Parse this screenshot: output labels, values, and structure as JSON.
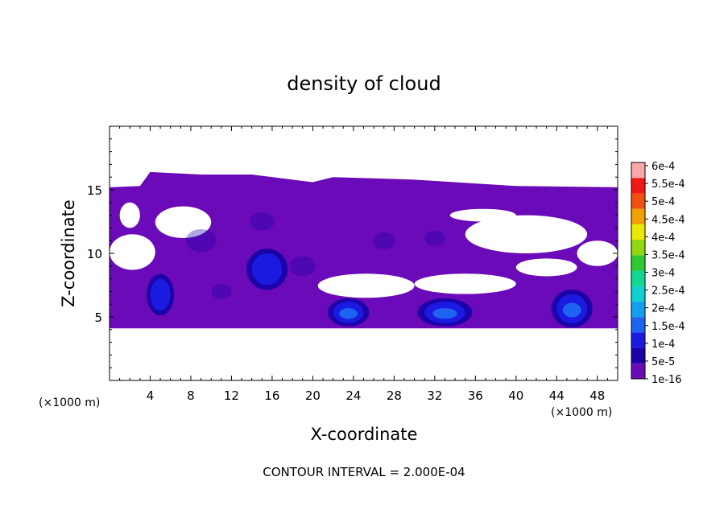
{
  "chart_data": {
    "type": "heatmap",
    "title": "density of cloud",
    "xlabel": "X-coordinate",
    "ylabel": "Z-coordinate",
    "x_units": "(×1000 m)",
    "xlim": [
      0,
      50
    ],
    "ylim": [
      0,
      20
    ],
    "x_ticks": [
      4,
      8,
      12,
      16,
      20,
      24,
      28,
      32,
      36,
      40,
      44,
      48
    ],
    "y_ticks": [
      5,
      10,
      15
    ],
    "colorbar": {
      "labels": [
        "1e-16",
        "5e-5",
        "1e-4",
        "1.5e-4",
        "2e-4",
        "2.5e-4",
        "3e-4",
        "3.5e-4",
        "4e-4",
        "4.5e-4",
        "5e-4",
        "5.5e-4",
        "6e-4"
      ],
      "colors": [
        "#6a0ab8",
        "#1c00a8",
        "#1a1ae0",
        "#1e64f0",
        "#14a0f0",
        "#10d0d0",
        "#10d890",
        "#30c830",
        "#90d810",
        "#e8e800",
        "#f0a000",
        "#f05010",
        "#f01818",
        "#f8a8a8"
      ]
    },
    "footer": "CONTOUR INTERVAL = 2.000E-04",
    "regions": [
      {
        "kind": "cloud_layer",
        "x": [
          0,
          50
        ],
        "z": [
          4,
          16.5
        ],
        "level": "1e-16"
      },
      {
        "kind": "core",
        "x": [
          4,
          6
        ],
        "z": [
          5.5,
          8
        ],
        "level": "1e-4"
      },
      {
        "kind": "core",
        "x": [
          14,
          17
        ],
        "z": [
          7.5,
          10
        ],
        "level": "1e-4"
      },
      {
        "kind": "core",
        "x": [
          22,
          25
        ],
        "z": [
          4.5,
          6.2
        ],
        "level": "1.5e-4"
      },
      {
        "kind": "core",
        "x": [
          31,
          35
        ],
        "z": [
          4.5,
          6.2
        ],
        "level": "1.5e-4"
      },
      {
        "kind": "core",
        "x": [
          44,
          47
        ],
        "z": [
          4.5,
          6.8
        ],
        "level": "1.5e-4"
      }
    ]
  }
}
